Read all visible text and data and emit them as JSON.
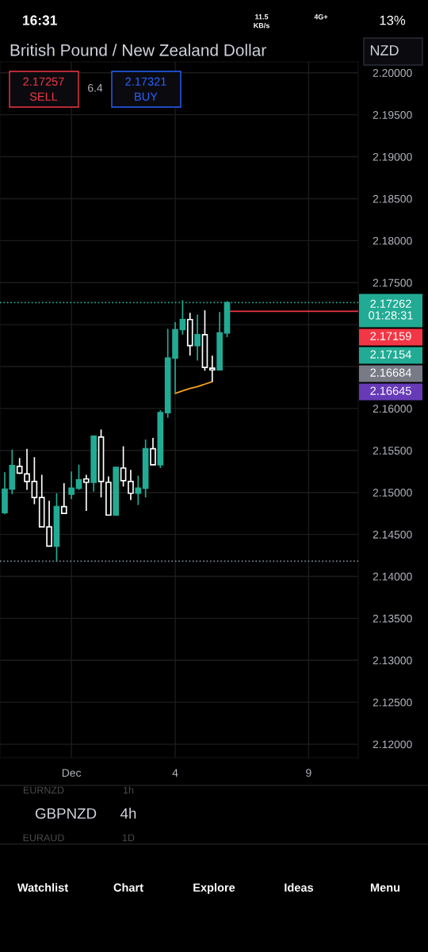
{
  "chart_data": {
    "type": "candlestick",
    "title": "British Pound / New Zealand Dollar",
    "categories": [
      null,
      null,
      null,
      null,
      null,
      null,
      null,
      null,
      null,
      "Dec",
      null,
      null,
      null,
      null,
      null,
      null,
      null,
      null,
      null,
      null,
      null,
      null,
      null,
      "4",
      null,
      null,
      null,
      null,
      null,
      null,
      null,
      null,
      null,
      null,
      null,
      null,
      null,
      null,
      null,
      null,
      null,
      "9",
      null,
      null,
      null,
      null,
      null,
      null
    ],
    "series": [
      {
        "ohlc": [
          [
            2.1476,
            2.1524,
            2.1474,
            2.1504
          ],
          [
            2.1504,
            2.1551,
            2.1498,
            2.1532
          ],
          [
            2.1531,
            2.1541,
            2.1522,
            2.1523
          ],
          [
            2.1522,
            2.1552,
            2.1503,
            2.1513
          ],
          [
            2.1513,
            2.1542,
            2.1486,
            2.1494
          ],
          [
            2.1494,
            2.1521,
            2.1459,
            2.1459
          ],
          [
            2.1459,
            2.149,
            2.1436,
            2.1436
          ],
          [
            2.1436,
            2.1499,
            2.1418,
            2.1483
          ],
          [
            2.1483,
            2.1511,
            2.1475,
            2.1475
          ],
          [
            2.1498,
            2.1525,
            2.1492,
            2.1505
          ],
          [
            2.1505,
            2.1533,
            2.1503,
            2.1515
          ],
          [
            2.1516,
            2.1521,
            2.1478,
            2.1512
          ],
          [
            2.1512,
            2.1567,
            2.1501,
            2.1567
          ],
          [
            2.1566,
            2.1575,
            2.1494,
            2.1513
          ],
          [
            2.1512,
            2.1519,
            2.1473,
            2.1473
          ],
          [
            2.1473,
            2.153,
            2.1473,
            2.153
          ],
          [
            2.1529,
            2.1555,
            2.1507,
            2.1514
          ],
          [
            2.1513,
            2.1527,
            2.1491,
            2.1499
          ],
          [
            2.1499,
            2.152,
            2.1485,
            2.1505
          ],
          [
            2.1505,
            2.1563,
            2.1494,
            2.1552
          ],
          [
            2.1552,
            2.1565,
            2.1533,
            2.1533
          ],
          [
            2.1533,
            2.1598,
            2.1529,
            2.1595
          ],
          [
            2.1595,
            2.1695,
            2.1589,
            2.166
          ],
          [
            2.166,
            2.1703,
            2.1618,
            2.1694
          ],
          [
            2.1694,
            2.1729,
            2.1688,
            2.1706
          ],
          [
            2.1706,
            2.1714,
            2.1663,
            2.1675
          ],
          [
            2.1675,
            2.1712,
            2.1657,
            2.1688
          ],
          [
            2.1688,
            2.1717,
            2.1645,
            2.1649
          ],
          [
            2.1648,
            2.1663,
            2.1632,
            2.1646
          ],
          [
            2.1646,
            2.1715,
            2.1646,
            2.169
          ],
          [
            2.169,
            2.1728,
            2.1685,
            2.1726
          ],
          null,
          null,
          null,
          null,
          null,
          null,
          null,
          null,
          null,
          null,
          null,
          null,
          null,
          null,
          null,
          null,
          null
        ],
        "colors": [
          "#22ab94",
          "#22ab94",
          "#ffffff",
          "#ffffff",
          "#ffffff",
          "#ffffff",
          "#ffffff",
          "#22ab94",
          "#ffffff",
          "#22ab94",
          "#22ab94",
          "#ffffff",
          "#22ab94",
          "#ffffff",
          "#ffffff",
          "#22ab94",
          "#ffffff",
          "#ffffff",
          "#22ab94",
          "#22ab94",
          "#ffffff",
          "#22ab94",
          "#22ab94",
          "#22ab94",
          "#22ab94",
          "#ffffff",
          "#22ab94",
          "#ffffff",
          "#ffffff",
          "#22ab94",
          "#22ab94",
          null,
          null,
          null,
          null,
          null,
          null,
          null,
          null,
          null,
          null,
          null,
          null,
          null,
          null,
          null,
          null,
          null
        ]
      },
      {
        "type": "line",
        "color": "#f7a21b",
        "values": [
          null,
          null,
          null,
          null,
          null,
          null,
          null,
          null,
          null,
          null,
          null,
          null,
          null,
          null,
          null,
          null,
          null,
          null,
          null,
          null,
          null,
          null,
          null,
          2.1618,
          2.1621,
          2.1624,
          2.1626,
          2.1629,
          2.1632,
          null,
          null,
          null,
          null,
          null,
          null,
          null,
          null,
          null,
          null,
          null,
          null,
          null,
          null,
          null,
          null,
          null,
          null,
          null
        ]
      }
    ],
    "ylim": [
      2.1184,
      2.2013
    ],
    "yticks": [
      {
        "value": 2.12,
        "label": "2.12000"
      },
      {
        "value": 2.125,
        "label": "2.12500"
      },
      {
        "value": 2.13,
        "label": "2.13000"
      },
      {
        "value": 2.135,
        "label": "2.13500"
      },
      {
        "value": 2.14,
        "label": "2.14000"
      },
      {
        "value": 2.145,
        "label": "2.14500"
      },
      {
        "value": 2.15,
        "label": "2.15000"
      },
      {
        "value": 2.155,
        "label": "2.15500"
      },
      {
        "value": 2.16,
        "label": "2.16000"
      },
      {
        "value": 2.165,
        "label": null
      },
      {
        "value": 2.17,
        "label": null
      },
      {
        "value": 2.175,
        "label": "2.17500"
      },
      {
        "value": 2.18,
        "label": "2.18000"
      },
      {
        "value": 2.185,
        "label": "2.18500"
      },
      {
        "value": 2.19,
        "label": "2.19000"
      },
      {
        "value": 2.195,
        "label": "2.19500"
      },
      {
        "value": 2.2,
        "label": "2.20000"
      }
    ],
    "grid": true,
    "ref_lines": [
      {
        "axis": "y",
        "value": 2.17262,
        "label": "2.17262\n01:28:31",
        "color": "#22ab94",
        "line_style": "dotted"
      },
      {
        "axis": "y",
        "value": 2.17159,
        "label": "2.17159",
        "color": "#f23645",
        "line_style": "solid"
      },
      {
        "axis": "y",
        "value": 2.1418,
        "color": "#7d8796",
        "line_style": "dotted"
      }
    ],
    "annotations": [
      "16:31",
      "11.5",
      "KB/s",
      "4G+",
      "13%",
      "NZD",
      "2.17257",
      "SELL",
      "6.4",
      "2.17321",
      "BUY",
      "EURNZD",
      "1h",
      "GBPNZD",
      "4h",
      "EURAUD",
      "1D",
      "Watchlist",
      "Chart",
      "Explore",
      "Ideas",
      "Menu",
      "2.17154",
      "2.16684",
      "2.16645"
    ]
  }
}
